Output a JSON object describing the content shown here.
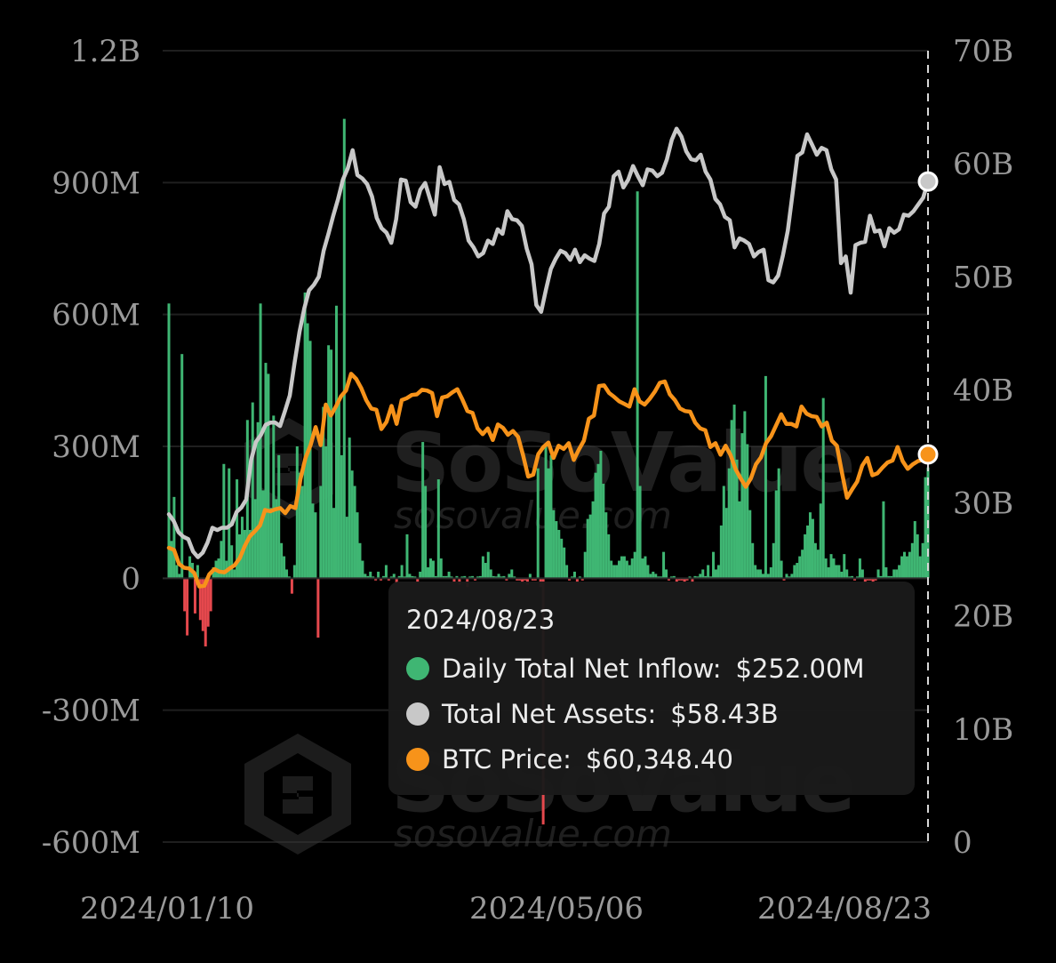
{
  "chart_data": {
    "type": "bar+line",
    "x_tick_labels": [
      "2024/01/10",
      "2024/05/06",
      "2024/08/23"
    ],
    "left_axis": {
      "range": [
        -600000000,
        1200000000
      ],
      "ticks": [
        {
          "value": 1200000000,
          "label": "1.2B"
        },
        {
          "value": 900000000,
          "label": "900M"
        },
        {
          "value": 600000000,
          "label": "600M"
        },
        {
          "value": 300000000,
          "label": "300M"
        },
        {
          "value": 0,
          "label": "0"
        },
        {
          "value": -300000000,
          "label": "-300M"
        },
        {
          "value": -600000000,
          "label": "-600M"
        }
      ]
    },
    "right_axis": {
      "range": [
        0,
        70000000000
      ],
      "ticks": [
        {
          "value": 70000000000,
          "label": "70B"
        },
        {
          "value": 60000000000,
          "label": "60B"
        },
        {
          "value": 50000000000,
          "label": "50B"
        },
        {
          "value": 40000000000,
          "label": "40B"
        },
        {
          "value": 30000000000,
          "label": "30B"
        },
        {
          "value": 20000000000,
          "label": "20B"
        },
        {
          "value": 10000000000,
          "label": "10B"
        },
        {
          "value": 0,
          "label": "0"
        }
      ]
    },
    "grid": "horizontal",
    "colors": {
      "inflow_positive": "#3fb673",
      "inflow_negative": "#e5484d",
      "net_assets": "#c8c8c8",
      "btc_price": "#f7931a"
    },
    "series": [
      {
        "name": "Daily Total Net Inflow",
        "axis": "left",
        "type": "bar",
        "values_millions": [
          625,
          85,
          185,
          30,
          10,
          510,
          -75,
          -130,
          50,
          35,
          -80,
          30,
          -95,
          -120,
          -155,
          -110,
          -75,
          25,
          40,
          45,
          85,
          260,
          40,
          250,
          75,
          20,
          225,
          100,
          140,
          110,
          360,
          110,
          400,
          180,
          355,
          625,
          200,
          490,
          465,
          160,
          370,
          180,
          280,
          80,
          50,
          20,
          0,
          -35,
          30,
          300,
          240,
          210,
          650,
          580,
          540,
          170,
          150,
          -135,
          210,
          390,
          300,
          530,
          520,
          160,
          620,
          400,
          280,
          1045,
          140,
          320,
          245,
          210,
          150,
          80,
          40,
          10,
          5,
          15,
          0,
          -5,
          15,
          -5,
          5,
          30,
          -5,
          0,
          10,
          -10,
          5,
          30,
          0,
          100,
          10,
          5,
          0,
          -10,
          15,
          310,
          210,
          25,
          45,
          40,
          5,
          225,
          45,
          5,
          5,
          15,
          0,
          -10,
          5,
          -15,
          0,
          5,
          -20,
          0,
          5,
          -5,
          0,
          5,
          50,
          35,
          60,
          20,
          5,
          0,
          10,
          0,
          5,
          -5,
          10,
          20,
          0,
          -5,
          -5,
          -10,
          -5,
          -15,
          10,
          -5,
          -5,
          250,
          -20,
          -560,
          300,
          250,
          280,
          155,
          130,
          110,
          90,
          70,
          30,
          -5,
          0,
          15,
          -10,
          0,
          -5,
          60,
          135,
          145,
          175,
          240,
          260,
          290,
          215,
          150,
          100,
          40,
          30,
          30,
          40,
          50,
          50,
          40,
          30,
          45,
          60,
          880,
          210,
          45,
          50,
          30,
          10,
          15,
          10,
          0,
          0,
          60,
          20,
          -5,
          0,
          5,
          -10,
          -5,
          -5,
          -10,
          -5,
          0,
          -10,
          5,
          0,
          10,
          20,
          5,
          30,
          0,
          60,
          20,
          30,
          120,
          210,
          160,
          250,
          360,
          395,
          270,
          175,
          330,
          380,
          305,
          155,
          80,
          30,
          20,
          20,
          10,
          460,
          10,
          25,
          80,
          200,
          250,
          40,
          -5,
          10,
          0,
          10,
          30,
          35,
          50,
          65,
          100,
          120,
          150,
          135,
          80,
          65,
          170,
          410,
          45,
          25,
          55,
          45,
          30,
          30,
          15,
          55,
          20,
          0,
          5,
          -5,
          0,
          45,
          20,
          -10,
          -5,
          -5,
          -10,
          -5,
          20,
          5,
          175,
          25,
          5,
          5,
          20,
          20,
          30,
          50,
          60,
          50,
          60,
          80,
          130,
          100,
          50,
          80,
          230,
          252
        ]
      },
      {
        "name": "Total Net Assets",
        "axis": "right",
        "type": "line",
        "values_billions": [
          29.0,
          28.4,
          27.4,
          27.0,
          26.8,
          25.7,
          25.2,
          25.6,
          26.5,
          27.8,
          27.6,
          27.8,
          27.8,
          28.1,
          29.2,
          29.6,
          30.3,
          33.8,
          35.4,
          36.0,
          36.9,
          37.1,
          37.1,
          36.8,
          38.1,
          39.5,
          42.4,
          45.1,
          47.2,
          48.8,
          49.3,
          50.0,
          52.3,
          53.8,
          55.4,
          56.9,
          58.6,
          59.6,
          61.2,
          59.0,
          58.7,
          58.2,
          57.1,
          55.2,
          54.3,
          53.9,
          53.0,
          55.1,
          58.6,
          58.5,
          56.6,
          56.2,
          57.7,
          58.3,
          56.9,
          55.5,
          59.7,
          58.2,
          58.4,
          56.8,
          56.4,
          55.1,
          53.2,
          52.6,
          51.8,
          52.1,
          53.2,
          52.9,
          54.2,
          53.8,
          55.8,
          55.1,
          55.0,
          54.5,
          52.5,
          51.1,
          47.5,
          46.9,
          48.9,
          50.7,
          51.6,
          52.3,
          52.1,
          51.5,
          52.4,
          51.3,
          51.9,
          51.6,
          51.4,
          52.9,
          55.6,
          56.2,
          58.9,
          59.3,
          57.9,
          58.6,
          59.8,
          58.9,
          58.1,
          59.5,
          59.4,
          58.9,
          59.2,
          60.4,
          62.1,
          63.1,
          62.4,
          61.1,
          60.4,
          60.3,
          60.8,
          59.3,
          58.6,
          56.9,
          56.4,
          55.3,
          55.0,
          52.6,
          53.4,
          53.2,
          52.9,
          51.8,
          52.2,
          52.4,
          49.7,
          49.5,
          50.1,
          51.9,
          54.1,
          57.4,
          60.7,
          61.0,
          62.6,
          61.7,
          60.8,
          61.4,
          61.2,
          59.5,
          58.6,
          51.2,
          51.8,
          48.6,
          52.8,
          53.0,
          53.1,
          55.4,
          54.0,
          54.1,
          52.7,
          54.3,
          53.9,
          54.2,
          55.5,
          55.4,
          55.8,
          56.4,
          57.0,
          58.43
        ]
      },
      {
        "name": "BTC Price",
        "axis": "right",
        "type": "line",
        "values_btc_usd": [
          45800,
          45500,
          43300,
          42700,
          42600,
          41900,
          39800,
          39900,
          41700,
          42500,
          42100,
          42000,
          42600,
          43100,
          44200,
          46100,
          47600,
          48400,
          49300,
          51700,
          51500,
          51800,
          52000,
          51200,
          52300,
          52000,
          56500,
          59800,
          61800,
          64600,
          61800,
          68100,
          66400,
          67800,
          69400,
          70300,
          72900,
          72100,
          70700,
          68800,
          67500,
          67300,
          64300,
          65400,
          67900,
          65100,
          68800,
          69100,
          69600,
          69700,
          70400,
          70300,
          69900,
          66300,
          69200,
          69400,
          70000,
          70500,
          68900,
          67100,
          66800,
          64400,
          63500,
          64400,
          62600,
          65000,
          64500,
          63400,
          64000,
          63100,
          60200,
          56900,
          57200,
          60400,
          61500,
          62200,
          59800,
          61700,
          61200,
          62100,
          59500,
          61100,
          62500,
          65900,
          66400,
          71000,
          71100,
          69900,
          69300,
          68600,
          68200,
          67800,
          70500,
          68600,
          68100,
          69000,
          70100,
          71500,
          71700,
          69700,
          68800,
          67500,
          67100,
          67000,
          65300,
          64400,
          64100,
          61500,
          62100,
          60300,
          61700,
          60200,
          58000,
          56600,
          55300,
          56600,
          58800,
          59900,
          62100,
          63200,
          64900,
          66600,
          65100,
          65100,
          64700,
          67800,
          66700,
          66300,
          66200,
          64700,
          65300,
          62500,
          61700,
          57500,
          53600,
          54900,
          56100,
          58600,
          59800,
          57100,
          57400,
          58300,
          59100,
          59400,
          61500,
          59300,
          58100,
          58800,
          59300,
          59500,
          60348.4
        ]
      }
    ],
    "btc_price_right_axis_scale": {
      "price_at_0B": 0,
      "price_at_10B": 17600
    }
  },
  "watermark": {
    "brand": "SoSoValue",
    "url": "sosovalue.com"
  },
  "tooltip": {
    "date": "2024/08/23",
    "rows": [
      {
        "label": "Daily Total Net Inflow:",
        "value": "$252.00M",
        "color": "#3fb673"
      },
      {
        "label": "Total Net Assets:",
        "value": "$58.43B",
        "color": "#c8c8c8"
      },
      {
        "label": "BTC Price:",
        "value": "$60,348.40",
        "color": "#f7931a"
      }
    ]
  }
}
